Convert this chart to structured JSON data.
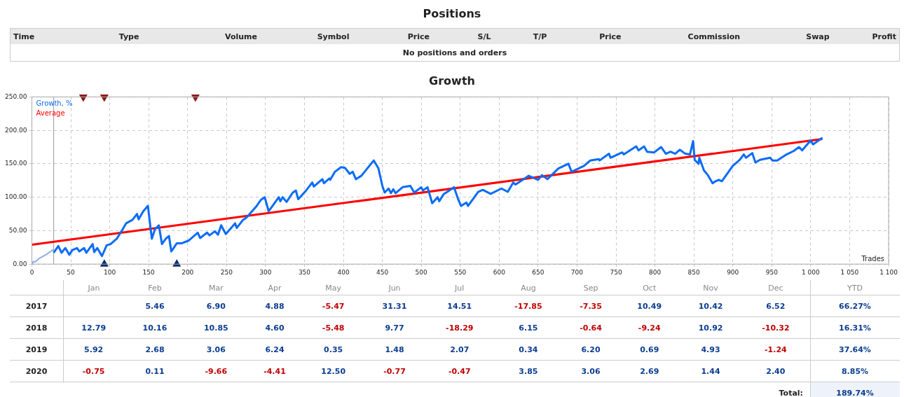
{
  "chart_data": [
    {
      "type": "other",
      "title": "Positions",
      "categories": [
        "Time",
        "Type",
        "Volume",
        "Symbol",
        "Price",
        "S/L",
        "T/P",
        "Price",
        "Commission",
        "Swap",
        "Profit"
      ],
      "annotations": [
        "No positions and orders"
      ]
    },
    {
      "type": "line",
      "title": "Growth",
      "xlabel": "Trades",
      "legend": "top left",
      "grid": true,
      "xlim": [
        0,
        1100
      ],
      "xticks": [
        0,
        50,
        100,
        150,
        200,
        250,
        300,
        350,
        400,
        450,
        500,
        550,
        600,
        650,
        700,
        750,
        800,
        850,
        900,
        950,
        {
          "value": 1000,
          "label": "1 000"
        },
        {
          "value": 1050,
          "label": "1 050"
        },
        {
          "value": 1100,
          "label": "1 100"
        }
      ],
      "ylim": [
        0,
        250
      ],
      "yticks": [
        {
          "value": 0,
          "label": "0.00"
        },
        {
          "value": 50,
          "label": "50.00"
        },
        {
          "value": 100,
          "label": "100.00"
        },
        {
          "value": 150,
          "label": "150.00"
        },
        {
          "value": 200,
          "label": "200.00"
        },
        {
          "value": 250,
          "label": "250.00"
        }
      ],
      "ref_lines": [
        {
          "axis": "x",
          "value": 28,
          "color": "#999999"
        }
      ],
      "series": [
        {
          "type": "line",
          "color": "#8fb0dc",
          "x": [
            0,
            2,
            4,
            10,
            18,
            28
          ],
          "values": [
            0,
            4,
            3,
            9,
            14,
            22
          ]
        },
        {
          "type": "line",
          "name": "Growth, %",
          "color": "#0a6cf5",
          "x": [
            28,
            34,
            38,
            43,
            48,
            52,
            58,
            61,
            67,
            70,
            78,
            80,
            84,
            90,
            96,
            101,
            109,
            115,
            121,
            129,
            135,
            137,
            143,
            149,
            154,
            158,
            163,
            167,
            172,
            176,
            179,
            186,
            192,
            201,
            213,
            216,
            225,
            228,
            235,
            239,
            243,
            249,
            261,
            263,
            271,
            276,
            288,
            294,
            299,
            304,
            309,
            317,
            319,
            322,
            327,
            335,
            339,
            342,
            352,
            360,
            362,
            373,
            375,
            382,
            383,
            389,
            397,
            402,
            408,
            412,
            416,
            423,
            439,
            445,
            450,
            453,
            458,
            461,
            464,
            467,
            476,
            486,
            491,
            500,
            502,
            508,
            514,
            521,
            523,
            529,
            536,
            542,
            547,
            551,
            558,
            560,
            573,
            579,
            589,
            603,
            611,
            618,
            621,
            638,
            650,
            655,
            662,
            676,
            689,
            693,
            709,
            717,
            728,
            729,
            741,
            743,
            758,
            760,
            776,
            779,
            786,
            790,
            799,
            808,
            814,
            820,
            826,
            832,
            839,
            845,
            849,
            851,
            856,
            857,
            863,
            868,
            874,
            878,
            882,
            886,
            900,
            909,
            914,
            917,
            925,
            929,
            935,
            948,
            951,
            957,
            969,
            978,
            985,
            989,
            1000,
            1003,
            1015
          ],
          "values": [
            17,
            27,
            17,
            24,
            14,
            21,
            24,
            19,
            24,
            17,
            30,
            18,
            24,
            12,
            28,
            30,
            38,
            49,
            61,
            66,
            75,
            67,
            79,
            87,
            38,
            52,
            58,
            30,
            38,
            42,
            19,
            31,
            31,
            35,
            47,
            39,
            47,
            43,
            49,
            44,
            58,
            45,
            61,
            54,
            66,
            70,
            86,
            96,
            100,
            79,
            87,
            100,
            94,
            100,
            93,
            107,
            110,
            97,
            110,
            122,
            116,
            127,
            121,
            128,
            126,
            138,
            145,
            144,
            135,
            138,
            127,
            132,
            155,
            143,
            117,
            107,
            113,
            106,
            112,
            106,
            115,
            117,
            107,
            115,
            110,
            115,
            91,
            100,
            94,
            105,
            110,
            115,
            98,
            87,
            92,
            87,
            108,
            111,
            105,
            113,
            108,
            122,
            119,
            132,
            126,
            133,
            127,
            143,
            150,
            138,
            147,
            155,
            157,
            155,
            165,
            159,
            167,
            164,
            176,
            170,
            176,
            168,
            167,
            175,
            165,
            168,
            165,
            171,
            165,
            164,
            184,
            156,
            150,
            159,
            140,
            133,
            121,
            124,
            126,
            124,
            147,
            156,
            164,
            159,
            166,
            152,
            156,
            159,
            155,
            155,
            164,
            169,
            175,
            170,
            185,
            179,
            189
          ]
        },
        {
          "type": "line",
          "name": "Average",
          "color": "#ff0000",
          "x": [
            0,
            1015
          ],
          "values": [
            29,
            187
          ]
        },
        {
          "type": "scatter",
          "marker": "triangle",
          "color": "#8b1a1a",
          "x": [
            66,
            93,
            210
          ],
          "values": [
            250,
            250,
            250
          ]
        },
        {
          "type": "scatter",
          "marker": "triangle",
          "color": "#0b2e6b",
          "x": [
            93,
            186
          ],
          "values": [
            0,
            0
          ]
        }
      ]
    },
    {
      "type": "heatmap",
      "categories": [
        "Jan",
        "Feb",
        "Mar",
        "Apr",
        "May",
        "Jun",
        "Jul",
        "Aug",
        "Sep",
        "Oct",
        "Nov",
        "Dec",
        "YTD"
      ],
      "y_categories": [
        "2017",
        "2018",
        "2019",
        "2020"
      ],
      "cells": [
        [
          null,
          5.46,
          6.9,
          4.88,
          -5.47,
          31.31,
          14.51,
          -17.85,
          -7.35,
          10.49,
          10.42,
          6.52,
          66.27
        ],
        [
          12.79,
          10.16,
          10.85,
          4.6,
          -5.48,
          9.77,
          -18.29,
          6.15,
          -0.64,
          -9.24,
          10.92,
          -10.32,
          16.31
        ],
        [
          5.92,
          2.68,
          3.06,
          6.24,
          0.35,
          1.48,
          2.07,
          0.34,
          6.2,
          0.69,
          4.93,
          -1.24,
          37.64
        ],
        [
          -0.75,
          0.11,
          -9.66,
          -4.41,
          12.5,
          -0.77,
          -0.47,
          3.85,
          3.06,
          2.69,
          1.44,
          2.4,
          8.85
        ]
      ],
      "cell_labels": [
        [
          null,
          "5.46",
          "6.90",
          "4.88",
          "-5.47",
          "31.31",
          "14.51",
          "-17.85",
          "-7.35",
          "10.49",
          "10.42",
          "6.52",
          "66.27%"
        ],
        [
          "12.79",
          "10.16",
          "10.85",
          "4.60",
          "-5.48",
          "9.77",
          "-18.29",
          "6.15",
          "-0.64",
          "-9.24",
          "10.92",
          "-10.32",
          "16.31%"
        ],
        [
          "5.92",
          "2.68",
          "3.06",
          "6.24",
          "0.35",
          "1.48",
          "2.07",
          "0.34",
          "6.20",
          "0.69",
          "4.93",
          "-1.24",
          "37.64%"
        ],
        [
          "-0.75",
          "0.11",
          "-9.66",
          "-4.41",
          "12.50",
          "-0.77",
          "-0.47",
          "3.85",
          "3.06",
          "2.69",
          "1.44",
          "2.40",
          "8.85%"
        ]
      ],
      "annotations": [
        "Total:",
        "189.74%"
      ]
    }
  ]
}
